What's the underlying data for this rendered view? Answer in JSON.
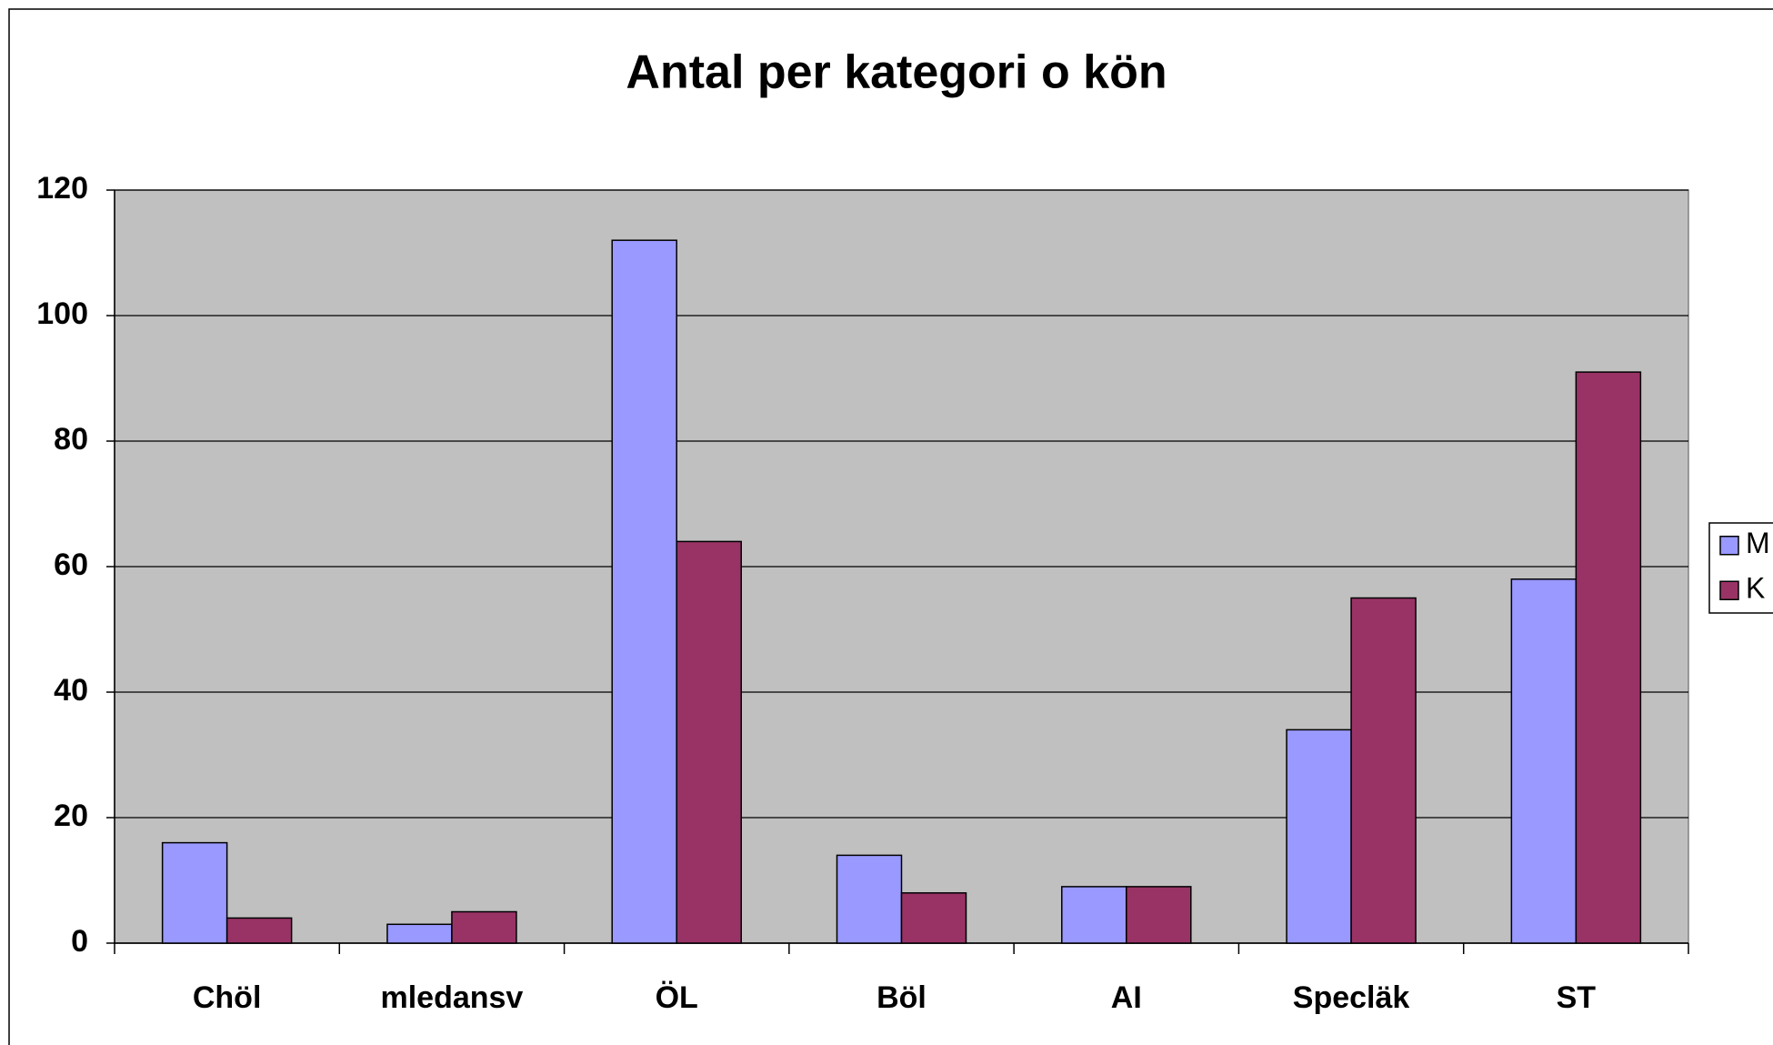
{
  "chart_data": {
    "type": "bar",
    "title": "Antal per kategori o kön",
    "categories": [
      "Chöl",
      "mledansv",
      "ÖL",
      "Böl",
      "AI",
      "Specläk",
      "ST"
    ],
    "series": [
      {
        "name": "M",
        "color": "#9999ff",
        "values": [
          16,
          3,
          112,
          14,
          9,
          34,
          58
        ]
      },
      {
        "name": "K",
        "color": "#993366",
        "values": [
          4,
          5,
          64,
          8,
          9,
          55,
          91
        ]
      }
    ],
    "ylim": [
      0,
      120
    ],
    "yticks": [
      0,
      20,
      40,
      60,
      80,
      100,
      120
    ],
    "grid": true,
    "legend": "right"
  }
}
